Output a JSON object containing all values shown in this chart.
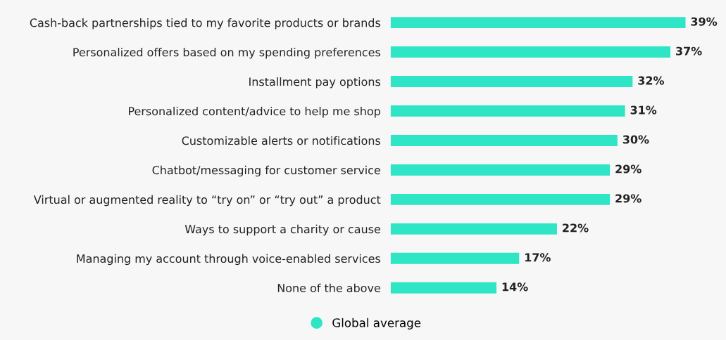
{
  "chart_data": {
    "type": "bar",
    "orientation": "horizontal",
    "categories": [
      "Cash-back partnerships tied to my favorite products or brands",
      "Personalized offers based on my spending preferences",
      "Installment pay options",
      "Personalized content/advice to help me shop",
      "Customizable alerts or notifications",
      "Chatbot/messaging for customer service",
      "Virtual or augmented reality to “try on” or “try out” a product",
      "Ways to support a charity or cause",
      "Managing my account through voice-enabled services",
      "None of the above"
    ],
    "series": [
      {
        "name": "Global average",
        "color": "#2ee6c5",
        "values": [
          39,
          37,
          32,
          31,
          30,
          29,
          29,
          22,
          17,
          14
        ],
        "value_labels": [
          "39%",
          "37%",
          "32%",
          "31%",
          "30%",
          "29%",
          "29%",
          "22%",
          "17%",
          "14%"
        ]
      }
    ],
    "legend": "bottom"
  }
}
